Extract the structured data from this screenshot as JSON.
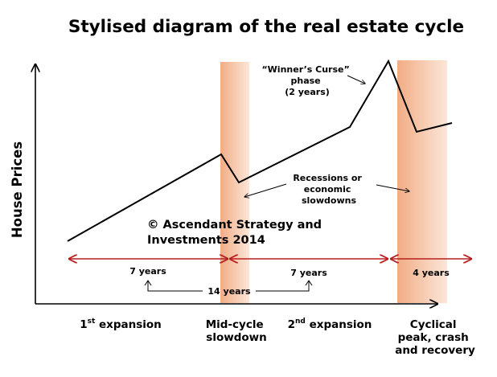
{
  "title": "Stylised diagram of the real estate cycle",
  "y_axis_label": "House Prices",
  "annotations": {
    "winners_curse": [
      "“Winner’s Curse”",
      "phase",
      "(2 years)"
    ],
    "recessions": [
      "Recessions or",
      "economic",
      "slowdowns"
    ],
    "copyright": [
      "© Ascendant Strategy and",
      "Investments 2014"
    ]
  },
  "durations": {
    "first": "7 years",
    "second": "7 years",
    "total": "14 years",
    "cyclical": "4 years"
  },
  "phases": {
    "expansion1": {
      "ordinal": "1",
      "sup": "st",
      "rest": " expansion"
    },
    "midcycle": [
      "Mid-cycle",
      "slowdown"
    ],
    "expansion2": {
      "ordinal": "2",
      "sup": "nd",
      "rest": " expansion"
    },
    "cyclical": [
      "Cyclical",
      "peak, crash",
      "and recovery"
    ]
  },
  "colors": {
    "band": "#f2b48c",
    "arrow": "#b81e1e",
    "line": "#000000"
  },
  "price_path_note": "stylised price line: rise, dip at mid-cycle, rise, sharp peak, crash, partial recovery"
}
